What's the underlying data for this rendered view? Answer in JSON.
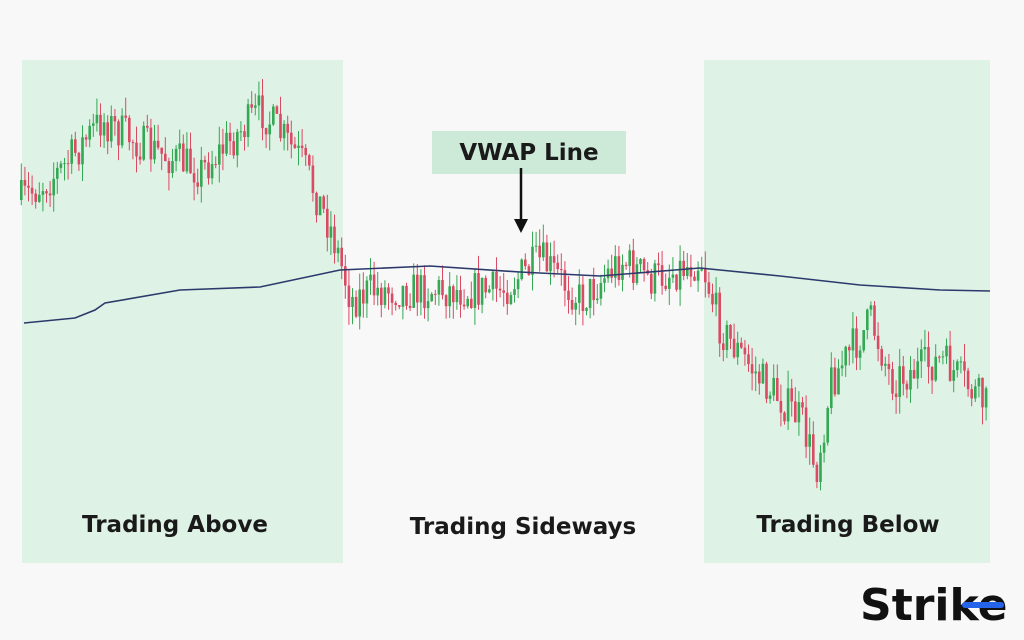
{
  "callout": "VWAP Line",
  "zones": [
    "Trading Above",
    "Trading Sideways",
    "Trading Below"
  ],
  "logo": "Strike"
}
